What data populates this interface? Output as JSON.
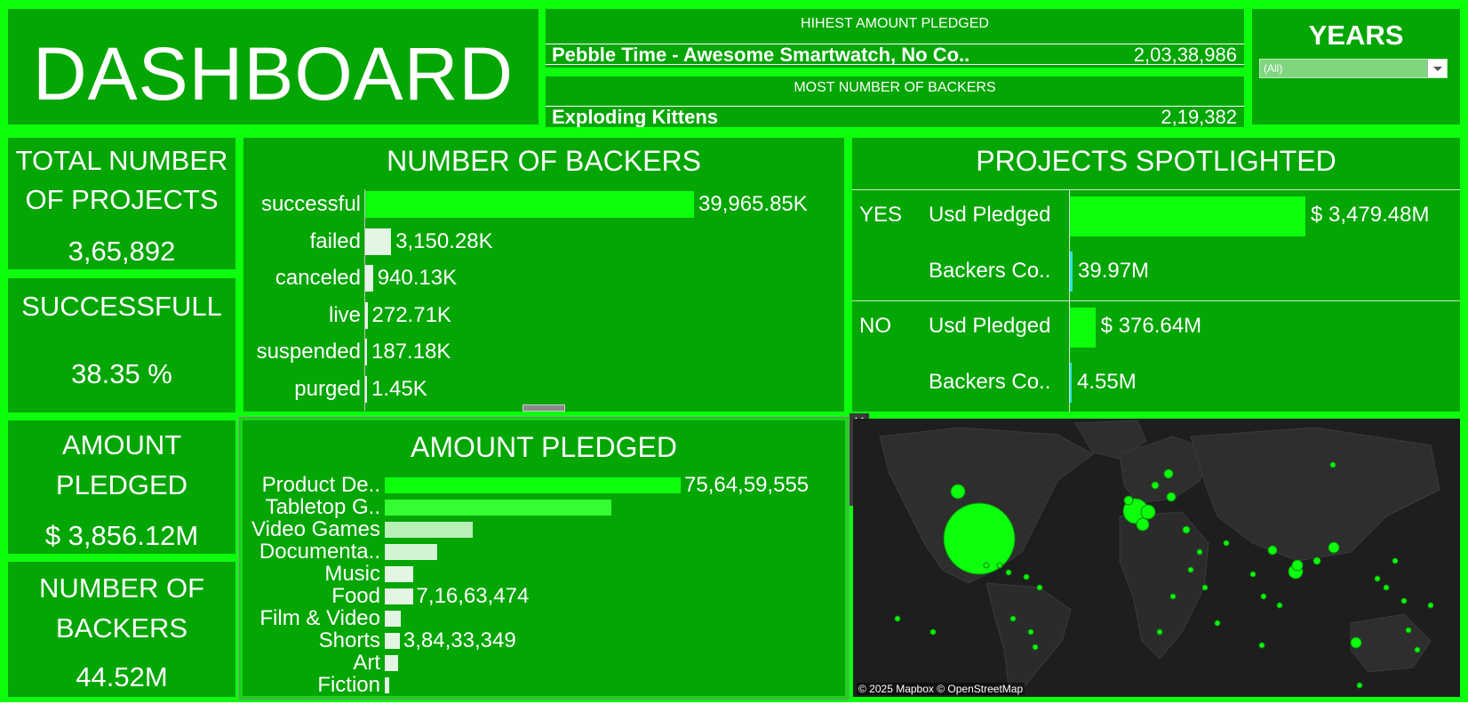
{
  "dashboard": {
    "title": "DASHBOARD"
  },
  "highest_pledged": {
    "heading": "HIHEST AMOUNT PLEDGED",
    "name": "Pebble Time - Awesome Smartwatch, No Co..",
    "value": "2,03,38,986"
  },
  "most_backers": {
    "heading": "MOST NUMBER OF BACKERS",
    "name": "Exploding Kittens",
    "value": "2,19,382"
  },
  "years_filter": {
    "label": "YEARS",
    "selected": "(All)"
  },
  "kpis": {
    "total_projects": {
      "title_line1": "TOTAL NUMBER",
      "title_line2": "OF PROJECTS",
      "value": "3,65,892"
    },
    "successful": {
      "title": "SUCCESSFULL",
      "value": "38.35 %"
    },
    "amount_pledged": {
      "title_line1": "AMOUNT",
      "title_line2": "PLEDGED",
      "value": "$ 3,856.12M"
    },
    "number_of_backers": {
      "title_line1": "NUMBER OF",
      "title_line2": "BACKERS",
      "value": "44.52M"
    }
  },
  "backers_chart": {
    "title": "NUMBER OF BACKERS",
    "rows": [
      {
        "label": "successful",
        "value_label": "39,965.85K",
        "value": 39965.85,
        "color": "#0dff0d"
      },
      {
        "label": "failed",
        "value_label": "3,150.28K",
        "value": 3150.28,
        "color": "#e3f5e3"
      },
      {
        "label": "canceled",
        "value_label": "940.13K",
        "value": 940.13,
        "color": "#e3f5e3"
      },
      {
        "label": "live",
        "value_label": "272.71K",
        "value": 272.71,
        "color": "#e3f5e3"
      },
      {
        "label": "suspended",
        "value_label": "187.18K",
        "value": 187.18,
        "color": "#e3f5e3"
      },
      {
        "label": "purged",
        "value_label": "1.45K",
        "value": 1.45,
        "color": "#e3f5e3"
      }
    ]
  },
  "spotlight": {
    "title": "PROJECTS SPOTLIGHTED",
    "groups": [
      {
        "group": "YES",
        "pledged_label": "Usd Pledged",
        "pledged_value": "$ 3,479.48M",
        "pledged": 3479.48,
        "backers_label": "Backers Co..",
        "backers_value": "39.97M",
        "backers": 39.97
      },
      {
        "group": "NO",
        "pledged_label": "Usd Pledged",
        "pledged_value": "$ 376.64M",
        "pledged": 376.64,
        "backers_label": "Backers Co..",
        "backers_value": "4.55M",
        "backers": 4.55
      }
    ]
  },
  "pledged_chart": {
    "title": "AMOUNT PLEDGED",
    "rows": [
      {
        "label": "Product De..",
        "value_label": "75,64,59,555",
        "value": 756459555,
        "color": "#0dff0d"
      },
      {
        "label": "Tabletop G..",
        "value_label": "",
        "value": 580000000,
        "color": "#33ff33"
      },
      {
        "label": "Video Games",
        "value_label": "",
        "value": 225000000,
        "color": "#b8f0b8"
      },
      {
        "label": "Documenta..",
        "value_label": "",
        "value": 135000000,
        "color": "#d4f5d4"
      },
      {
        "label": "Music",
        "value_label": "",
        "value": 72000000,
        "color": "#e3f5e3"
      },
      {
        "label": "Food",
        "value_label": "7,16,63,474",
        "value": 71663474,
        "color": "#e3f5e3"
      },
      {
        "label": "Film & Video",
        "value_label": "",
        "value": 42000000,
        "color": "#e3f5e3"
      },
      {
        "label": "Shorts",
        "value_label": "3,84,33,349",
        "value": 38433349,
        "color": "#e3f5e3"
      },
      {
        "label": "Art",
        "value_label": "",
        "value": 33000000,
        "color": "#e3f5e3"
      },
      {
        "label": "Fiction",
        "value_label": "",
        "value": 12000000,
        "color": "#e3f5e3"
      }
    ]
  },
  "map": {
    "attribution": "© 2025 Mapbox © OpenStreetMap",
    "tools": [
      "close-icon",
      "popout-icon",
      "filter-icon",
      "pin-icon",
      "more-icon"
    ]
  },
  "colors": {
    "frame": "#0dff0d",
    "panel": "#03a603",
    "bar_primary": "#0dff0d",
    "bar_muted": "#e3f5e3",
    "map_bg": "#262626"
  }
}
